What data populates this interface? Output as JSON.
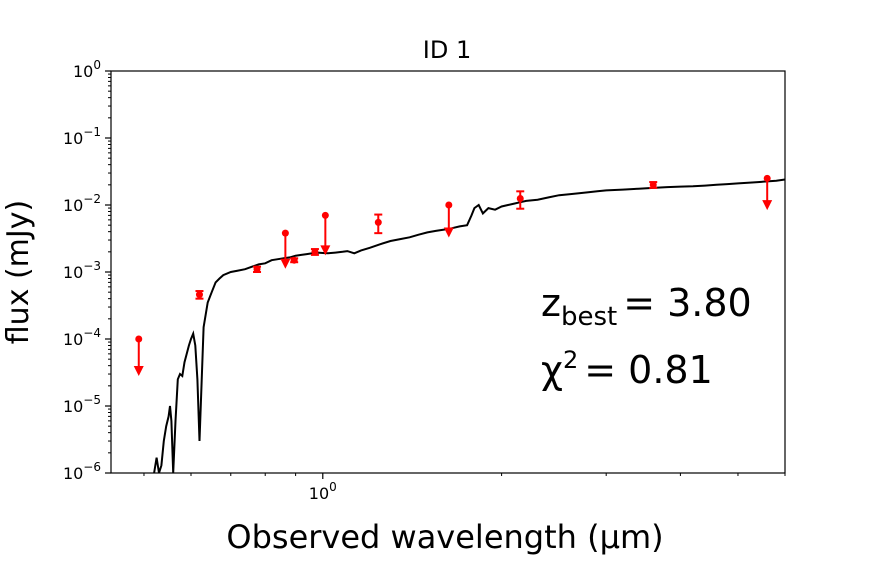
{
  "chart_data": {
    "type": "scatter",
    "title": "ID 1",
    "xlabel": "Observed wavelength (µm)",
    "ylabel": "flux (mJy)",
    "xscale": "log",
    "yscale": "log",
    "xlim": [
      0.44,
      6.0
    ],
    "ylim": [
      1e-06,
      1.0
    ],
    "xticks": [
      {
        "value": 1.0,
        "base": "10",
        "exp": "0"
      }
    ],
    "yticks": [
      {
        "value": 1.0,
        "base": "10",
        "exp": "0"
      },
      {
        "value": 0.1,
        "base": "10",
        "exp": "−1"
      },
      {
        "value": 0.01,
        "base": "10",
        "exp": "−2"
      },
      {
        "value": 0.001,
        "base": "10",
        "exp": "−3"
      },
      {
        "value": 0.0001,
        "base": "10",
        "exp": "−4"
      },
      {
        "value": 1e-05,
        "base": "10",
        "exp": "−5"
      },
      {
        "value": 1e-06,
        "base": "10",
        "exp": "−6"
      }
    ],
    "annotations": {
      "z_symbol": "z",
      "z_subscript": "best",
      "z_value": "= 3.80",
      "chi_symbol": "χ",
      "chi_superscript": "2",
      "chi_value": "= 0.81"
    },
    "grid": false,
    "colors": {
      "model": "#000000",
      "photometry": "#ff0000"
    },
    "sed_model": {
      "x": [
        0.52,
        0.525,
        0.53,
        0.535,
        0.54,
        0.545,
        0.55,
        0.553,
        0.556,
        0.56,
        0.565,
        0.57,
        0.575,
        0.58,
        0.585,
        0.59,
        0.595,
        0.6,
        0.605,
        0.61,
        0.615,
        0.62,
        0.63,
        0.64,
        0.65,
        0.66,
        0.67,
        0.68,
        0.7,
        0.72,
        0.74,
        0.76,
        0.78,
        0.8,
        0.82,
        0.84,
        0.86,
        0.88,
        0.9,
        0.92,
        0.94,
        0.96,
        0.98,
        1.0,
        1.02,
        1.05,
        1.08,
        1.1,
        1.13,
        1.16,
        1.2,
        1.25,
        1.3,
        1.35,
        1.4,
        1.45,
        1.5,
        1.55,
        1.6,
        1.65,
        1.7,
        1.75,
        1.78,
        1.8,
        1.83,
        1.86,
        1.9,
        1.95,
        2.0,
        2.05,
        2.1,
        2.15,
        2.2,
        2.3,
        2.4,
        2.5,
        2.6,
        2.7,
        2.8,
        2.9,
        3.0,
        3.2,
        3.4,
        3.6,
        3.8,
        4.0,
        4.2,
        4.4,
        4.6,
        4.8,
        5.0,
        5.2,
        5.4,
        5.6,
        5.8,
        6.0
      ],
      "y": [
        1e-06,
        1.7e-06,
        1e-06,
        1.3e-06,
        3e-06,
        5e-06,
        7e-06,
        1e-05,
        6e-06,
        1e-06,
        6e-06,
        2.5e-05,
        3e-05,
        2.8e-05,
        4.5e-05,
        6e-05,
        8e-05,
        0.0001,
        0.00012,
        8e-05,
        2.5e-05,
        3e-06,
        0.00015,
        0.00035,
        0.0005,
        0.0007,
        0.0008,
        0.0009,
        0.001,
        0.00105,
        0.0011,
        0.0012,
        0.0013,
        0.00135,
        0.0015,
        0.00155,
        0.0016,
        0.00165,
        0.00175,
        0.0018,
        0.00185,
        0.0019,
        0.00195,
        0.00192,
        0.0019,
        0.00195,
        0.002,
        0.00205,
        0.0019,
        0.0021,
        0.0023,
        0.0026,
        0.0029,
        0.0031,
        0.0033,
        0.0036,
        0.0039,
        0.0041,
        0.0043,
        0.0045,
        0.0048,
        0.005,
        0.007,
        0.009,
        0.01,
        0.0075,
        0.009,
        0.0085,
        0.0095,
        0.01,
        0.0105,
        0.011,
        0.0115,
        0.012,
        0.013,
        0.014,
        0.0145,
        0.015,
        0.0155,
        0.016,
        0.0165,
        0.017,
        0.0175,
        0.018,
        0.0185,
        0.0188,
        0.019,
        0.0195,
        0.02,
        0.0205,
        0.021,
        0.0215,
        0.022,
        0.0225,
        0.023,
        0.024
      ]
    },
    "photometry_points": [
      {
        "x": 0.62,
        "y": 0.00046,
        "yerr_low": 0.0004,
        "yerr_high": 0.00052
      },
      {
        "x": 0.775,
        "y": 0.0011,
        "yerr_low": 0.001,
        "yerr_high": 0.0012
      },
      {
        "x": 0.895,
        "y": 0.0015,
        "yerr_low": 0.0014,
        "yerr_high": 0.0016
      },
      {
        "x": 0.97,
        "y": 0.002,
        "yerr_low": 0.0018,
        "yerr_high": 0.0022
      },
      {
        "x": 1.24,
        "y": 0.0055,
        "yerr_low": 0.0038,
        "yerr_high": 0.0072
      },
      {
        "x": 2.15,
        "y": 0.0125,
        "yerr_low": 0.0088,
        "yerr_high": 0.016
      },
      {
        "x": 3.6,
        "y": 0.02,
        "yerr_low": 0.018,
        "yerr_high": 0.022
      }
    ],
    "upper_limits": [
      {
        "x": 0.49,
        "y": 0.0001,
        "arrow_to": 3e-05
      },
      {
        "x": 0.865,
        "y": 0.0038,
        "arrow_to": 0.0012
      },
      {
        "x": 1.01,
        "y": 0.007,
        "arrow_to": 0.0019
      },
      {
        "x": 1.63,
        "y": 0.01,
        "arrow_to": 0.0035
      },
      {
        "x": 5.6,
        "y": 0.025,
        "arrow_to": 0.009
      }
    ]
  }
}
